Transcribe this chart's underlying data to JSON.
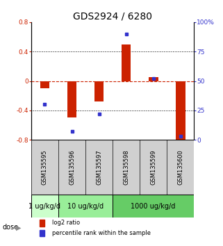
{
  "title": "GDS2924 / 6280",
  "samples": [
    "GSM135595",
    "GSM135596",
    "GSM135597",
    "GSM135598",
    "GSM135599",
    "GSM135600"
  ],
  "log2_ratio": [
    -0.1,
    -0.5,
    -0.28,
    0.5,
    0.05,
    -0.85
  ],
  "percentile_rank": [
    30,
    7,
    22,
    90,
    52,
    3
  ],
  "ylim_left": [
    -0.8,
    0.8
  ],
  "ylim_right": [
    0,
    100
  ],
  "yticks_left": [
    -0.8,
    -0.4,
    0.0,
    0.4,
    0.8
  ],
  "yticks_right": [
    0,
    25,
    50,
    75,
    100
  ],
  "ytick_labels_right": [
    "0",
    "25",
    "50",
    "75",
    "100%"
  ],
  "bar_color": "#cc2200",
  "dot_color": "#3333cc",
  "bar_width": 0.35,
  "dose_groups": [
    {
      "label": "1 ug/kg/d",
      "samples": [
        0
      ],
      "color": "#ccffcc"
    },
    {
      "label": "10 ug/kg/d",
      "samples": [
        1,
        2
      ],
      "color": "#99ee99"
    },
    {
      "label": "1000 ug/kg/d",
      "samples": [
        3,
        4,
        5
      ],
      "color": "#66cc66"
    }
  ],
  "dose_label": "dose",
  "legend_red": "log2 ratio",
  "legend_blue": "percentile rank within the sample",
  "title_fontsize": 10,
  "tick_fontsize": 6.5,
  "sample_label_fontsize": 6,
  "dose_fontsize": 7
}
